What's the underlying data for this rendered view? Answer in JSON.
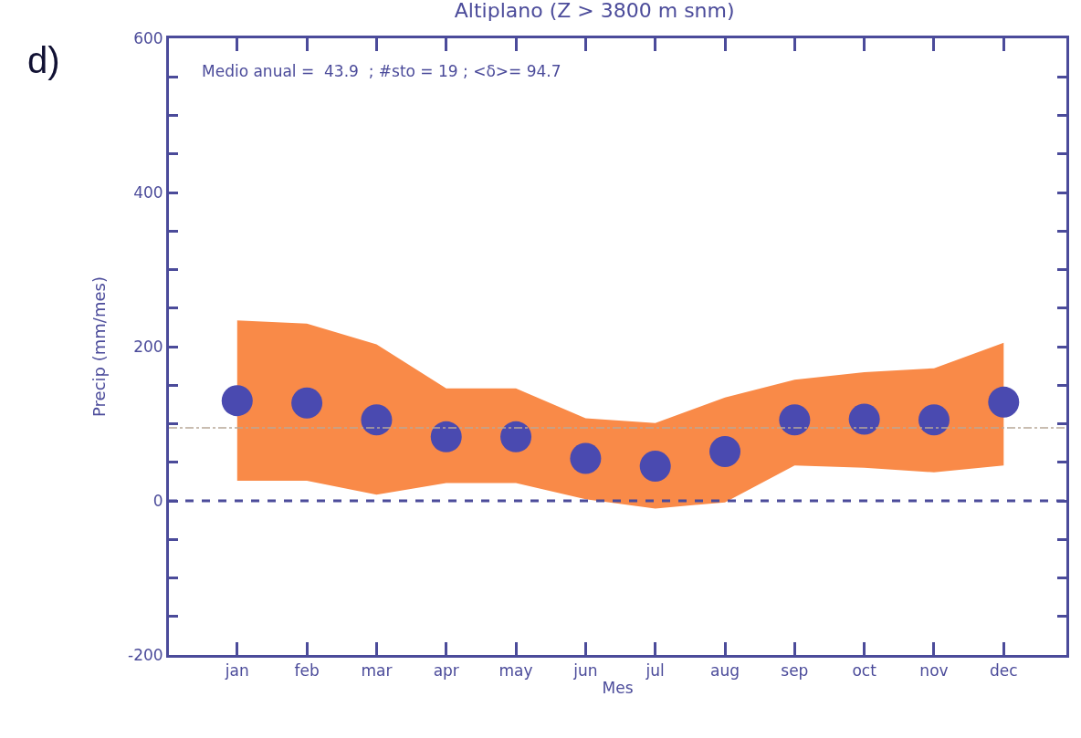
{
  "chart_data": {
    "type": "scatter",
    "title": "Altiplano (Z > 3800 m snm)",
    "xlabel": "Mes",
    "ylabel": "Precip (mm/mes)",
    "annotations": [
      "d)",
      "Medio anual =  43.9  ; #sto = 19 ; <δ>= 94.7"
    ],
    "categories": [
      "jan",
      "feb",
      "mar",
      "apr",
      "may",
      "jun",
      "jul",
      "aug",
      "sep",
      "oct",
      "nov",
      "dec"
    ],
    "series": [
      {
        "color": "#4a4ab0",
        "values": [
          130,
          127,
          105,
          83,
          83,
          55,
          45,
          64,
          105,
          106,
          105,
          128
        ],
        "lower": [
          26,
          26,
          8,
          23,
          23,
          2,
          -10,
          -2,
          46,
          43,
          37,
          46
        ],
        "upper": [
          234,
          230,
          203,
          146,
          146,
          107,
          101,
          134,
          157,
          167,
          172,
          205
        ]
      }
    ],
    "ylim": [
      -200,
      600
    ],
    "yticks": [
      -200,
      {
        "value": -150,
        "label": null
      },
      {
        "value": -100,
        "label": null
      },
      {
        "value": -50,
        "label": null
      },
      0,
      {
        "value": 50,
        "label": null
      },
      {
        "value": 100,
        "label": null
      },
      {
        "value": 150,
        "label": null
      },
      200,
      {
        "value": 250,
        "label": null
      },
      {
        "value": 300,
        "label": null
      },
      {
        "value": 350,
        "label": null
      },
      400,
      {
        "value": 450,
        "label": null
      },
      {
        "value": 500,
        "label": null
      },
      {
        "value": 550,
        "label": null
      },
      600
    ],
    "ref_lines": [
      {
        "axis": "y",
        "value": 0,
        "color": "#4b4b9a",
        "line_style": "dashed"
      },
      {
        "axis": "y",
        "value": 94.7,
        "color": "#b8a898",
        "line_style": "dashdot"
      }
    ],
    "marker": "circle",
    "grid": false
  }
}
